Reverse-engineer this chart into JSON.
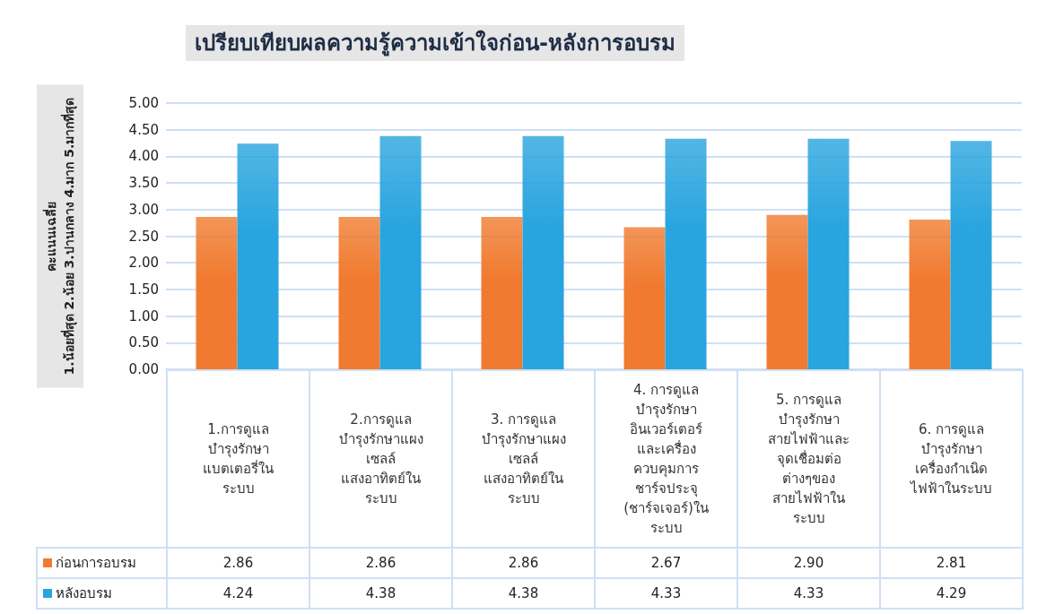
{
  "chart_data": {
    "type": "bar",
    "title": "เปรียบเทียบผลความรู้ความเข้าใจก่อน-หลังการอบรม",
    "ylabel": "คะแนนเฉลี่ย\n1.น้อยที่สุด 2.น้อย 3.ปานกลาง 4.มาก 5.มากที่สุด",
    "categories": [
      "1.การดูแล\nบำรุงรักษา\nแบตเตอรี่ใน\nระบบ",
      "2.การดูแล\nบำรุงรักษาแผง\nเซลล์\nแสงอาทิตย์ใน\nระบบ",
      "3. การดูแล\nบำรุงรักษาแผง\nเซลล์\nแสงอาทิตย์ใน\nระบบ",
      "4. การดูแล\nบำรุงรักษา\nอินเวอร์เตอร์\nและเครื่อง\nควบคุมการ\nชาร์จประจุ\n(ชาร์จเจอร์)ใน\nระบบ",
      "5. การดูแล\nบำรุงรักษา\nสายไฟฟ้าและ\nจุดเชื่อมต่อ\nต่างๆของ\nสายไฟฟ้าใน\nระบบ",
      "6. การดูแล\nบำรุงรักษา\nเครื่องกำเนิด\nไฟฟ้าในระบบ"
    ],
    "series": [
      {
        "name": "ก่อนการอบรม",
        "color": "#f07b30",
        "values": [
          2.86,
          2.86,
          2.86,
          2.67,
          2.9,
          2.81
        ],
        "value_labels": [
          "2.86",
          "2.86",
          "2.86",
          "2.67",
          "2.90",
          "2.81"
        ]
      },
      {
        "name": "หลังอบรม",
        "color": "#28a4de",
        "values": [
          4.24,
          4.38,
          4.38,
          4.33,
          4.33,
          4.29
        ],
        "value_labels": [
          "4.24",
          "4.38",
          "4.38",
          "4.33",
          "4.33",
          "4.29"
        ]
      }
    ],
    "ylim": [
      0,
      5
    ],
    "yticks": [
      {
        "value": 0,
        "label": "0.00"
      },
      {
        "value": 0.5,
        "label": "0.50"
      },
      {
        "value": 1,
        "label": "1.00"
      },
      {
        "value": 1.5,
        "label": "1.50"
      },
      {
        "value": 2,
        "label": "2.00"
      },
      {
        "value": 2.5,
        "label": "2.50"
      },
      {
        "value": 3,
        "label": "3.00"
      },
      {
        "value": 3.5,
        "label": "3.50"
      },
      {
        "value": 4,
        "label": "4.00"
      },
      {
        "value": 4.5,
        "label": "4.50"
      },
      {
        "value": 5,
        "label": "5.00"
      }
    ],
    "grid": "y",
    "legend": "bottom"
  }
}
